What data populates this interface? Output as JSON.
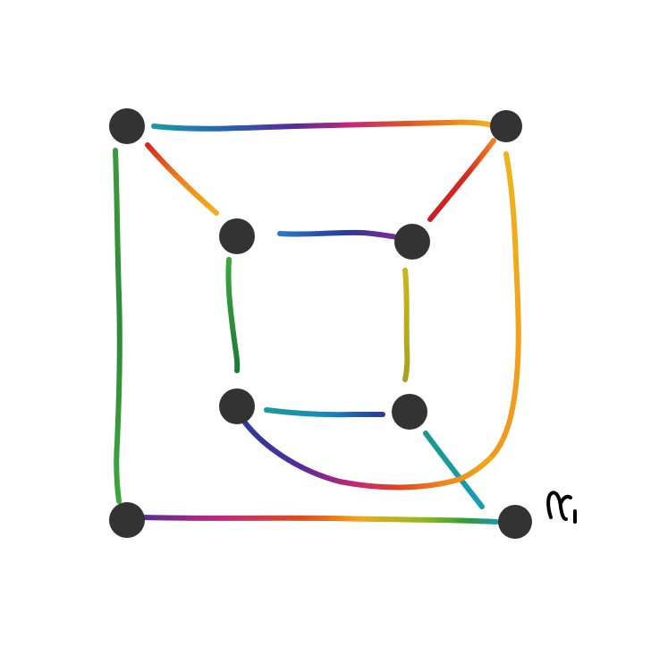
{
  "diagram": {
    "vertex_color": "#333333",
    "handwritten_label": "γ₁"
  },
  "palette": {
    "teal": "#1a9aa8",
    "blue": "#2a5fb0",
    "indigo": "#3a3a9a",
    "purple": "#7a2a9a",
    "magenta": "#c2287a",
    "red": "#d6281e",
    "orange": "#f0821e",
    "amber": "#f2a81a",
    "yellow": "#d9c01e",
    "olive": "#b8a81e",
    "green": "#3aa83a",
    "dark_green": "#2e8a3a"
  }
}
